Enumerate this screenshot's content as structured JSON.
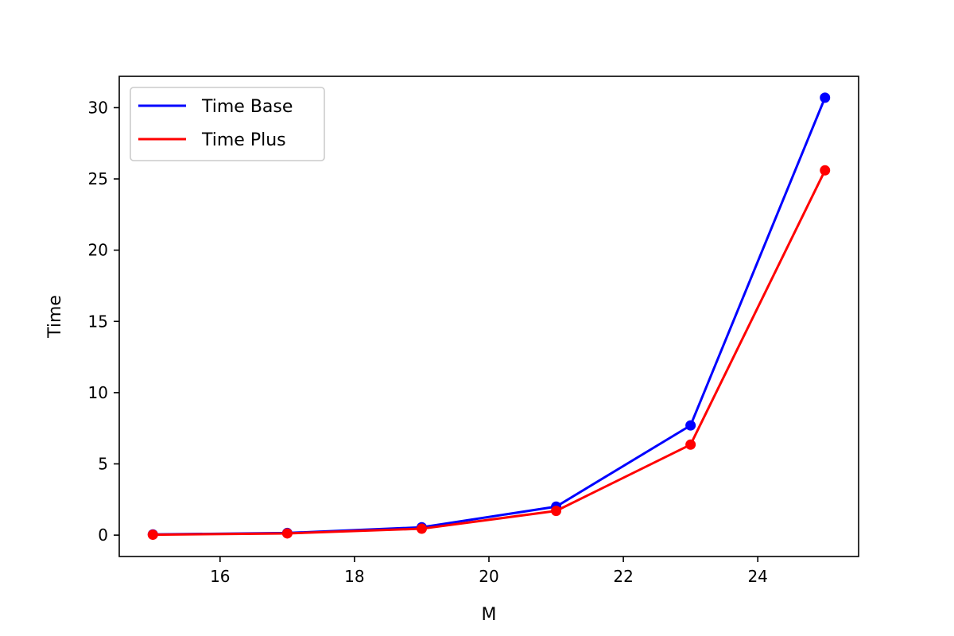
{
  "chart_data": {
    "type": "line",
    "title": "",
    "xlabel": "M",
    "ylabel": "Time",
    "x": [
      15,
      17,
      19,
      21,
      23,
      25
    ],
    "xlim": [
      14.5,
      25.5
    ],
    "ylim": [
      -1.5,
      32.2
    ],
    "xticks": [
      16,
      18,
      20,
      22,
      24
    ],
    "yticks": [
      0,
      5,
      10,
      15,
      20,
      25,
      30
    ],
    "grid": false,
    "legend_position": "upper-left",
    "series": [
      {
        "name": "Time Base",
        "color": "#0000ff",
        "values": [
          0.05,
          0.15,
          0.55,
          2.0,
          7.7,
          30.7
        ]
      },
      {
        "name": "Time Plus",
        "color": "#ff0000",
        "values": [
          0.03,
          0.12,
          0.45,
          1.7,
          6.35,
          25.6
        ]
      }
    ]
  }
}
